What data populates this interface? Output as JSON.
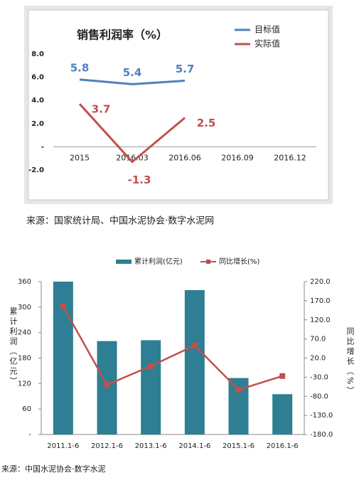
{
  "chart_data": [
    {
      "type": "line",
      "title": "销售利润率（%）",
      "categories": [
        "2015",
        "2016.03",
        "2016.06",
        "2016.09",
        "2016.12"
      ],
      "series": [
        {
          "name": "目标值",
          "color": "#4f81bd",
          "values": [
            5.8,
            5.4,
            5.7,
            null,
            null
          ]
        },
        {
          "name": "实际值",
          "color": "#c0504d",
          "values": [
            3.7,
            -1.3,
            2.5,
            null,
            null
          ]
        }
      ],
      "ylim": [
        -2,
        8
      ],
      "yticks": [
        {
          "value": 8,
          "label": "8.0"
        },
        {
          "value": 6,
          "label": "6.0"
        },
        {
          "value": 4,
          "label": "4.0"
        },
        {
          "value": 2,
          "label": "2.0"
        },
        {
          "value": 0,
          "label": "-"
        },
        {
          "value": -2,
          "label": "-2.0"
        }
      ],
      "legend": "top-right",
      "source": "来源：国家统计局、中国水泥协会·数字水泥网"
    },
    {
      "type": "combo",
      "categories": [
        "2011.1-6",
        "2012.1-6",
        "2013.1-6",
        "2014.1-6",
        "2015.1-6",
        "2016.1-6"
      ],
      "series": [
        {
          "name": "累计利润(亿元)",
          "color": "#2e7f93",
          "kind": "bar",
          "values": [
            360,
            220,
            222,
            340,
            133,
            95
          ]
        },
        {
          "name": "同比增长(%)",
          "color": "#c0504d",
          "kind": "line",
          "axis": "y2",
          "values": [
            155,
            -50,
            -1,
            53,
            -63,
            -27
          ]
        }
      ],
      "ylim": [
        0,
        360
      ],
      "yticks": [
        {
          "value": 0,
          "label": "-"
        },
        60,
        120,
        180,
        240,
        300,
        360
      ],
      "y2lim": [
        -180,
        220
      ],
      "y2ticks": [
        {
          "value": -180,
          "label": "-180.0"
        },
        {
          "value": -130,
          "label": "-130.0"
        },
        {
          "value": -80,
          "label": "-80.0"
        },
        {
          "value": -30,
          "label": "-30.0"
        },
        {
          "value": 20,
          "label": "20.0"
        },
        {
          "value": 70,
          "label": "70.0"
        },
        {
          "value": 120,
          "label": "120.0"
        },
        {
          "value": 170,
          "label": "170.0"
        },
        {
          "value": 220,
          "label": "220.0"
        }
      ],
      "y_label": "累计利润（亿元）",
      "y2_label": "同比增长（%）",
      "legend": "top",
      "source": "来源：中国水泥协会·数字水泥"
    }
  ]
}
